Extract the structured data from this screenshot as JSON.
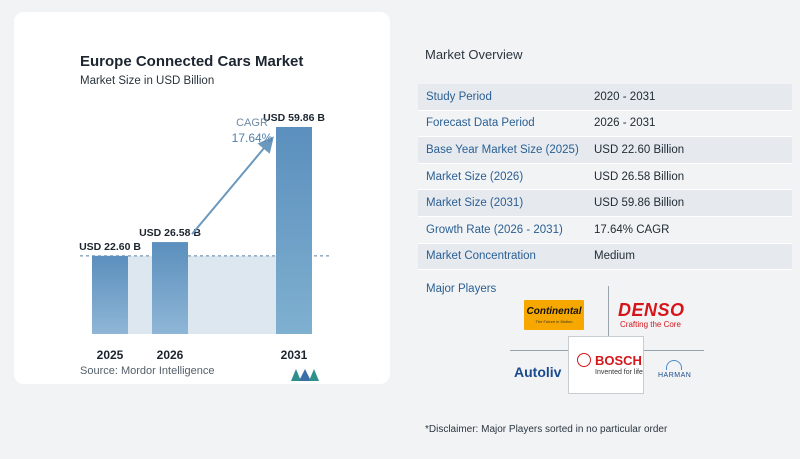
{
  "chart_card": {
    "title": "Europe Connected Cars Market",
    "subtitle": "Market Size in USD Billion",
    "source": "Source:  Mordor Intelligence"
  },
  "chart_data": {
    "type": "bar",
    "title": "Europe Connected Cars Market",
    "subtitle": "Market Size in USD Billion",
    "categories": [
      "2025",
      "2026",
      "2031"
    ],
    "values": [
      22.6,
      26.58,
      59.86
    ],
    "data_labels": [
      "USD 22.60 B",
      "USD 26.58 B",
      "USD 59.86 B"
    ],
    "cagr_label": "CAGR",
    "cagr_value": "17.64%",
    "ylim": [
      0,
      62
    ],
    "grid": false,
    "colors": {
      "bar_top": "#5b8fbd",
      "bar_bottom": "#a9c6de",
      "band": "#dde7f0",
      "arrow": "#6b98bd",
      "dash": "#5a7fa0"
    }
  },
  "overview": {
    "title": "Market Overview",
    "rows": [
      {
        "label": "Study Period",
        "value": "2020 - 2031"
      },
      {
        "label": "Forecast Data Period",
        "value": "2026 - 2031"
      },
      {
        "label": "Base Year Market Size (2025)",
        "value": "USD 22.60 Billion"
      },
      {
        "label": "Market Size (2026)",
        "value": "USD 26.58 Billion"
      },
      {
        "label": "Market Size (2031)",
        "value": "USD 59.86 Billion"
      },
      {
        "label": "Growth Rate (2026 - 2031)",
        "value": "17.64% CAGR"
      },
      {
        "label": "Market Concentration",
        "value": "Medium"
      }
    ]
  },
  "players": {
    "title": "Major Players",
    "logos": [
      "Continental",
      "DENSO",
      "Autoliv",
      "BOSCH",
      "HARMAN"
    ]
  },
  "disclaimer": "*Disclaimer: Major Players sorted in no particular order"
}
